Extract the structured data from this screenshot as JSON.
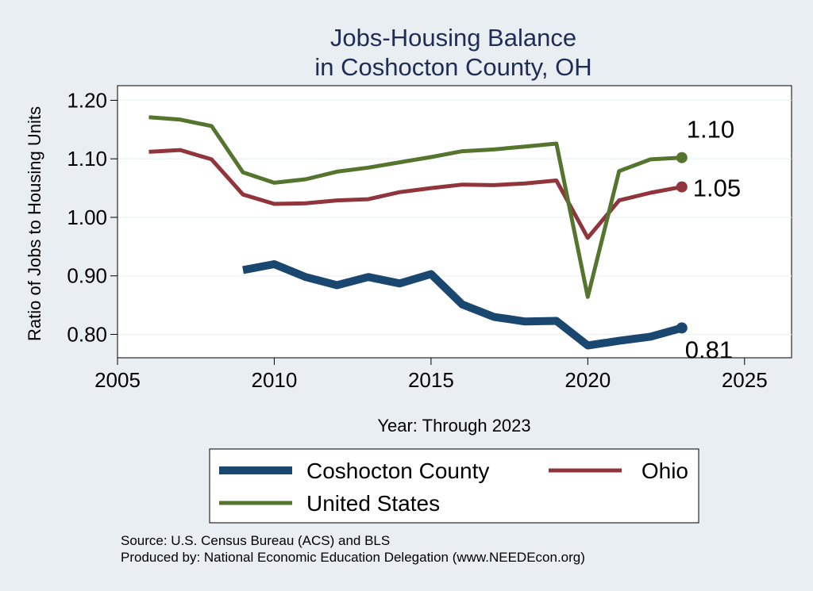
{
  "chart_data": {
    "type": "line",
    "title": [
      "Jobs-Housing Balance",
      "in Coshocton County, OH"
    ],
    "xlabel": "Year: Through 2023",
    "ylabel": "Ratio of Jobs to Housing Units",
    "xlim": [
      2005,
      2026.5
    ],
    "ylim": [
      0.76,
      1.225
    ],
    "xticks": [
      2005,
      2010,
      2015,
      2020,
      2025
    ],
    "yticks": [
      0.8,
      0.9,
      1.0,
      1.1,
      1.2
    ],
    "xtick_labels": [
      "2005",
      "2010",
      "2015",
      "2020",
      "2025"
    ],
    "ytick_labels": [
      "0.80",
      "0.90",
      "1.00",
      "1.10",
      "1.20"
    ],
    "grid": true,
    "legend_position": "bottom",
    "series": [
      {
        "name": "Coshocton County",
        "color": "#1a476f",
        "width": 10,
        "x": [
          2009,
          2010,
          2011,
          2012,
          2013,
          2014,
          2015,
          2016,
          2017,
          2018,
          2019,
          2020,
          2021,
          2022,
          2023
        ],
        "y": [
          0.91,
          0.92,
          0.898,
          0.884,
          0.898,
          0.887,
          0.903,
          0.851,
          0.83,
          0.822,
          0.823,
          0.781,
          0.789,
          0.796,
          0.811
        ],
        "end_label": "0.81"
      },
      {
        "name": "Ohio",
        "color": "#90353b",
        "width": 5,
        "x": [
          2006,
          2007,
          2008,
          2009,
          2010,
          2011,
          2012,
          2013,
          2014,
          2015,
          2016,
          2017,
          2018,
          2019,
          2020,
          2021,
          2022,
          2023
        ],
        "y": [
          1.112,
          1.115,
          1.099,
          1.039,
          1.023,
          1.024,
          1.029,
          1.031,
          1.043,
          1.05,
          1.056,
          1.055,
          1.058,
          1.063,
          0.965,
          1.029,
          1.042,
          1.052
        ],
        "end_label": "1.05"
      },
      {
        "name": "United States",
        "color": "#55752f",
        "width": 5,
        "x": [
          2006,
          2007,
          2008,
          2009,
          2010,
          2011,
          2012,
          2013,
          2014,
          2015,
          2016,
          2017,
          2018,
          2019,
          2020,
          2021,
          2022,
          2023
        ],
        "y": [
          1.171,
          1.167,
          1.156,
          1.077,
          1.059,
          1.065,
          1.078,
          1.085,
          1.094,
          1.103,
          1.113,
          1.116,
          1.121,
          1.126,
          0.864,
          1.079,
          1.099,
          1.102
        ],
        "end_label": "1.10"
      }
    ],
    "source_lines": [
      "Source: U.S. Census Bureau (ACS) and BLS",
      "Produced by: National Economic Education Delegation (www.NEEDEcon.org)"
    ]
  }
}
